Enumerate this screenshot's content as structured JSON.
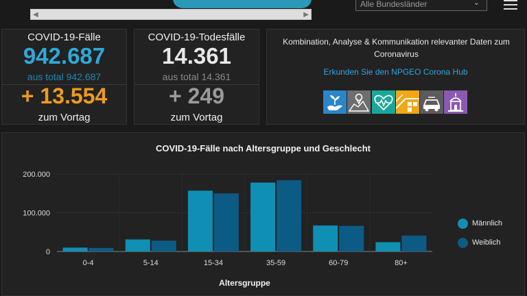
{
  "header": {
    "state_select_value": "Alle Bundesländer"
  },
  "cases": {
    "title": "COVID-19-Fälle",
    "value": "942.687",
    "total_text": "aus total 942.687",
    "delta": "+ 13.554",
    "delta_label": "zum Vortag"
  },
  "deaths": {
    "title": "COVID-19-Todesfälle",
    "value": "14.361",
    "total_text": "aus total 14.361",
    "delta": "+ 249",
    "delta_label": "zum Vortag"
  },
  "hub": {
    "text": "Kombination, Analyse & Kommunikation relevanter Daten zum Coronavirus",
    "link": "Erkunden Sie den NPGEO Corona Hub",
    "icons": [
      {
        "name": "hands-plant-icon",
        "color": "#2b86c8"
      },
      {
        "name": "map-pin-icon",
        "color": "#6e6e6e"
      },
      {
        "name": "heart-pulse-icon",
        "color": "#1aa79a"
      },
      {
        "name": "city-map-icon",
        "color": "#f0a818"
      },
      {
        "name": "car-icon",
        "color": "#5c5c5c"
      },
      {
        "name": "church-icon",
        "color": "#8a5ab0"
      }
    ]
  },
  "colors": {
    "male": "#0f8fb4",
    "female": "#0c5b84",
    "accent_blue": "#30a8d8",
    "accent_orange": "#eb9b20"
  },
  "chart_data": {
    "type": "bar",
    "title": "COVID-19-Fälle nach Altersgruppe und Geschlecht",
    "xlabel": "Altersgruppe",
    "ylabel": "",
    "categories": [
      "0-4",
      "5-14",
      "15-34",
      "35-59",
      "60-79",
      "80+"
    ],
    "series": [
      {
        "name": "Männlich",
        "values": [
          10000,
          31000,
          157000,
          178000,
          67000,
          24000
        ]
      },
      {
        "name": "Weiblich",
        "values": [
          9000,
          28000,
          150000,
          184000,
          66000,
          41000
        ]
      }
    ],
    "ylim": [
      0,
      200000
    ],
    "yticks": [
      0,
      100000,
      200000
    ],
    "ytick_labels": [
      "0",
      "100.000",
      "200.000"
    ],
    "grid": true,
    "legend_position": "right"
  }
}
